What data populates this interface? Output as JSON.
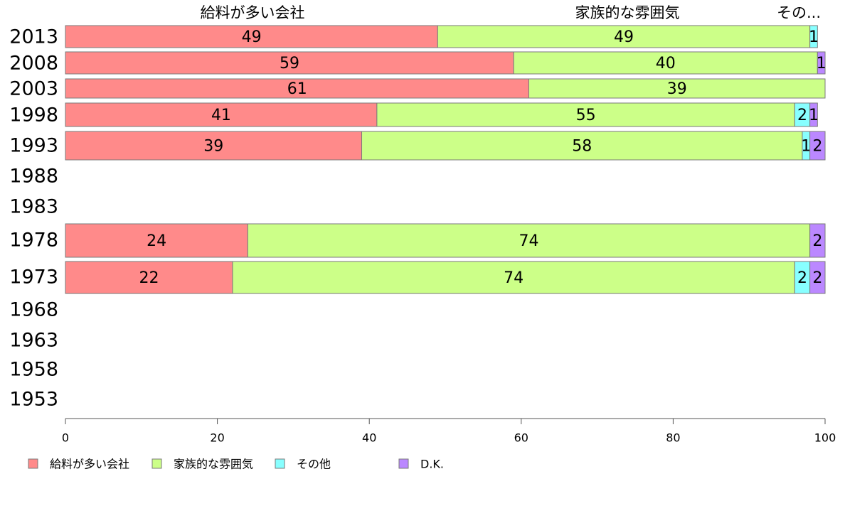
{
  "chart_data": {
    "type": "bar",
    "orientation": "horizontal",
    "stacked": true,
    "categories": [
      "2013",
      "2008",
      "2003",
      "1998",
      "1993",
      "1988",
      "1983",
      "1978",
      "1973",
      "1968",
      "1963",
      "1958",
      "1953"
    ],
    "series": [
      {
        "name": "給料が多い会社",
        "color": "#ff8a8a",
        "values": [
          49,
          59,
          61,
          41,
          39,
          null,
          null,
          24,
          22,
          null,
          null,
          null,
          null
        ]
      },
      {
        "name": "家族的な雰囲気",
        "color": "#ccff88",
        "values": [
          49,
          40,
          39,
          55,
          58,
          null,
          null,
          74,
          74,
          null,
          null,
          null,
          null
        ]
      },
      {
        "name": "その他",
        "color": "#88ffff",
        "values": [
          1,
          null,
          null,
          2,
          1,
          null,
          null,
          null,
          2,
          null,
          null,
          null,
          null
        ]
      },
      {
        "name": "D.K.",
        "color": "#bb88ff",
        "values": [
          null,
          1,
          null,
          1,
          2,
          null,
          null,
          2,
          2,
          null,
          null,
          null,
          null
        ]
      }
    ],
    "column_headers": [
      "給料が多い会社",
      "家族的な雰囲気",
      "その..."
    ],
    "xlim": [
      0,
      100
    ],
    "xticks": [
      "0",
      "20",
      "40",
      "60",
      "80",
      "100"
    ],
    "legend_position": "bottom",
    "grid": false
  }
}
